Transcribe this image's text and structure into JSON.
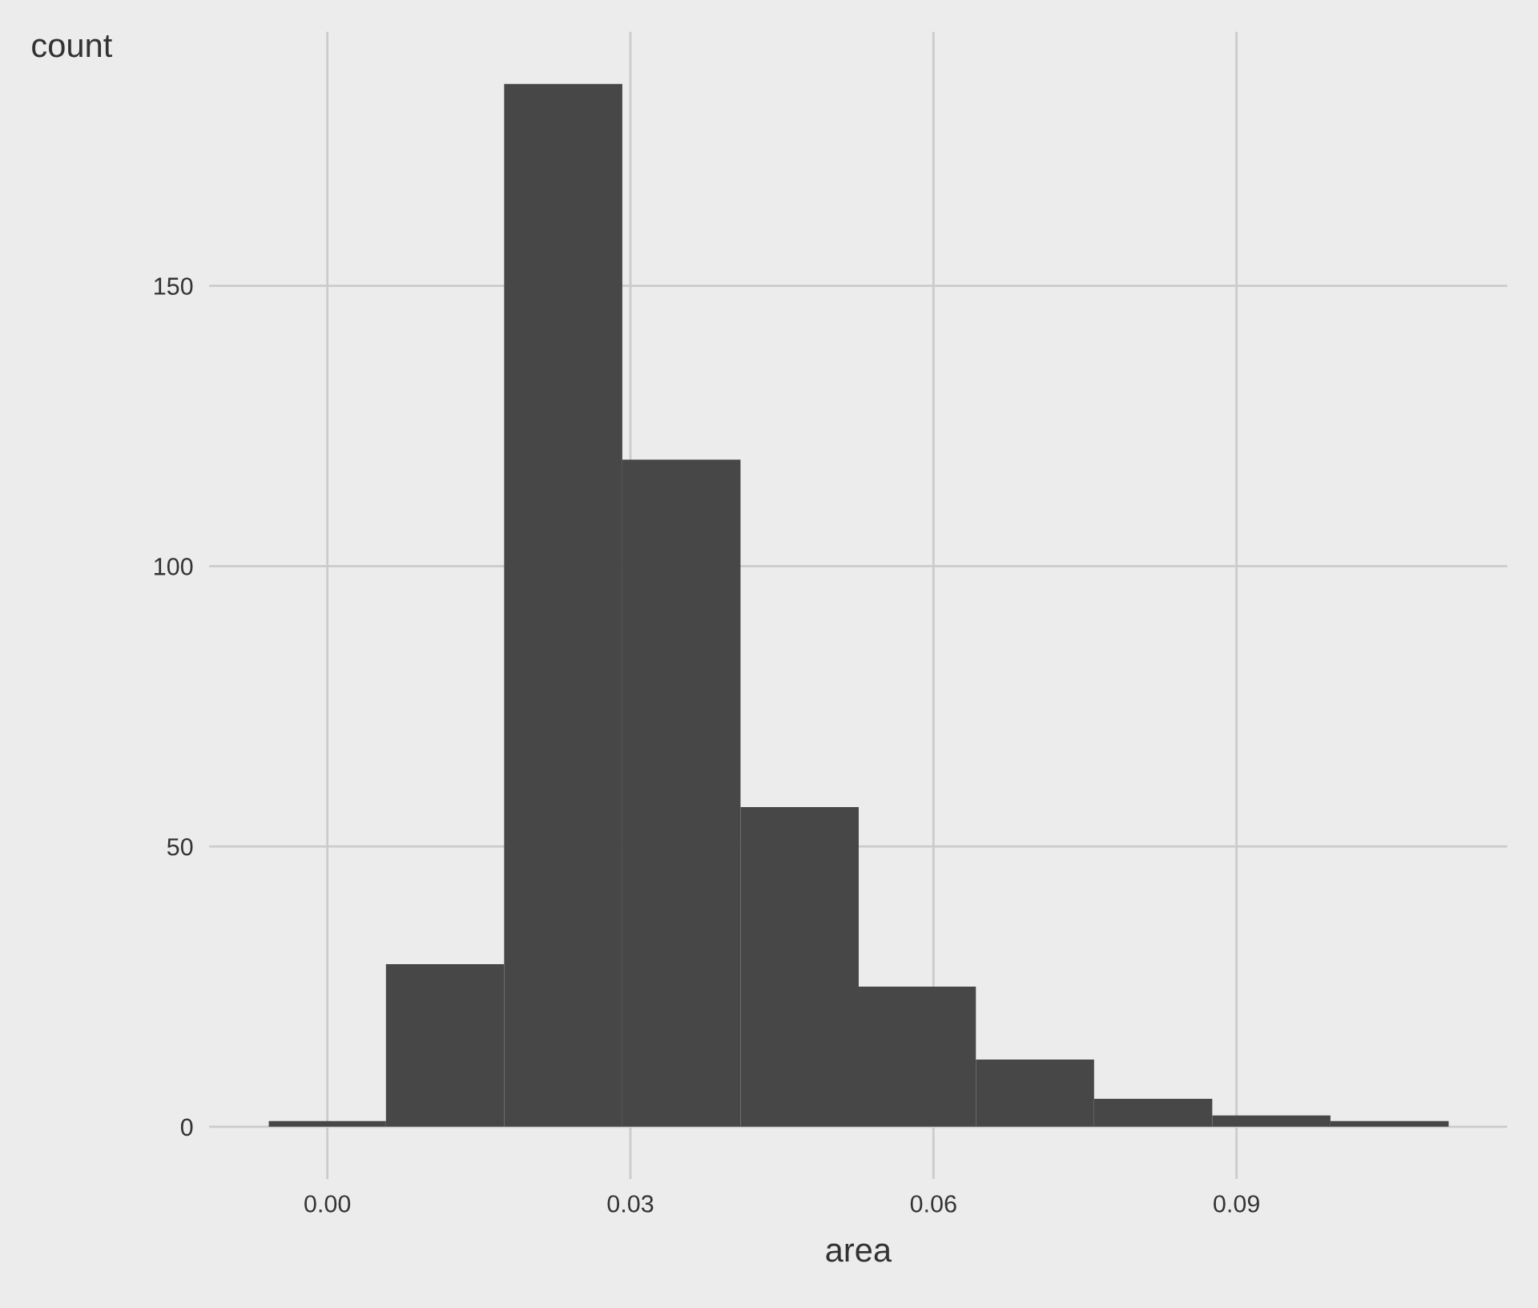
{
  "chart_data": {
    "type": "histogram",
    "xlabel": "area",
    "ylabel": "count",
    "bins": [
      -0.0058,
      0.0058,
      0.0175,
      0.0292,
      0.0409,
      0.0526,
      0.0642,
      0.0759,
      0.0876,
      0.0993,
      0.111
    ],
    "values": [
      1,
      29,
      186,
      119,
      57,
      25,
      12,
      5,
      2,
      1
    ],
    "color": "#474747",
    "xlim": [
      -0.0117,
      0.1168
    ],
    "xticks": [
      {
        "value": 0,
        "label": "0.00"
      },
      0.03,
      0.06,
      0.09
    ],
    "ylim": [
      -9.3,
      195.3
    ],
    "yticks": [
      0,
      50,
      100,
      150
    ],
    "grid": true
  }
}
